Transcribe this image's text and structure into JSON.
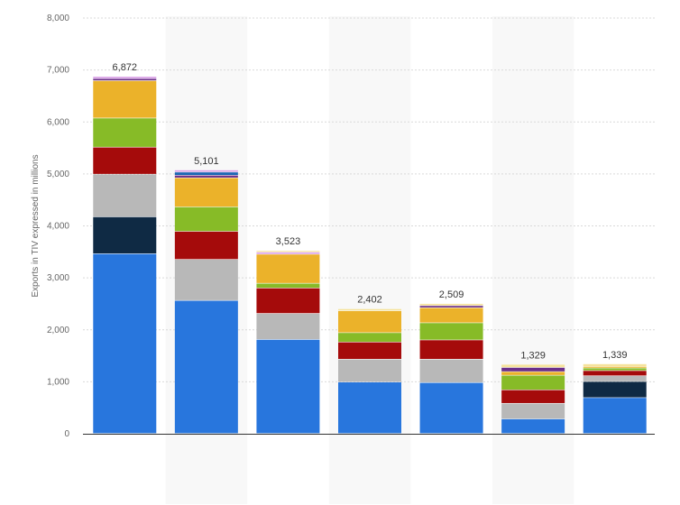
{
  "chart_data": {
    "type": "bar",
    "stacked": true,
    "ylabel": "Exports in TIV expressed in millions",
    "ylim": [
      0,
      8000
    ],
    "yticks": [
      0,
      1000,
      2000,
      3000,
      4000,
      5000,
      6000,
      7000,
      8000
    ],
    "ytick_labels": [
      "0",
      "1,000",
      "2,000",
      "3,000",
      "4,000",
      "5,000",
      "6,000",
      "7,000",
      "8,000"
    ],
    "grid": true,
    "legend": "none",
    "totals": [
      "6,872",
      "5,101",
      "3,523",
      "2,402",
      "2,509",
      "1,329",
      "1,339"
    ],
    "series": [
      {
        "color": "#2876dd",
        "values": [
          3460,
          2560,
          1810,
          990,
          980,
          280,
          690
        ]
      },
      {
        "color": "#0f2a44",
        "values": [
          710,
          0,
          0,
          0,
          0,
          0,
          310
        ]
      },
      {
        "color": "#b8b8b8",
        "values": [
          820,
          790,
          500,
          440,
          450,
          300,
          110
        ]
      },
      {
        "color": "#a50b0b",
        "values": [
          520,
          540,
          490,
          330,
          370,
          260,
          100
        ]
      },
      {
        "color": "#87bb27",
        "values": [
          560,
          470,
          90,
          180,
          330,
          280,
          50
        ]
      },
      {
        "color": "#ebb22a",
        "values": [
          720,
          560,
          560,
          420,
          290,
          70,
          30
        ]
      },
      {
        "color": "#6b2f8a",
        "values": [
          40,
          50,
          0,
          0,
          40,
          80,
          0
        ]
      },
      {
        "color": "#1c68b4",
        "values": [
          0,
          60,
          0,
          0,
          0,
          0,
          0
        ]
      },
      {
        "color": "#d99fe6",
        "values": [
          40,
          40,
          40,
          0,
          0,
          0,
          0
        ]
      },
      {
        "color": "#f5e39c",
        "values": [
          0,
          0,
          30,
          40,
          40,
          60,
          50
        ]
      }
    ]
  }
}
